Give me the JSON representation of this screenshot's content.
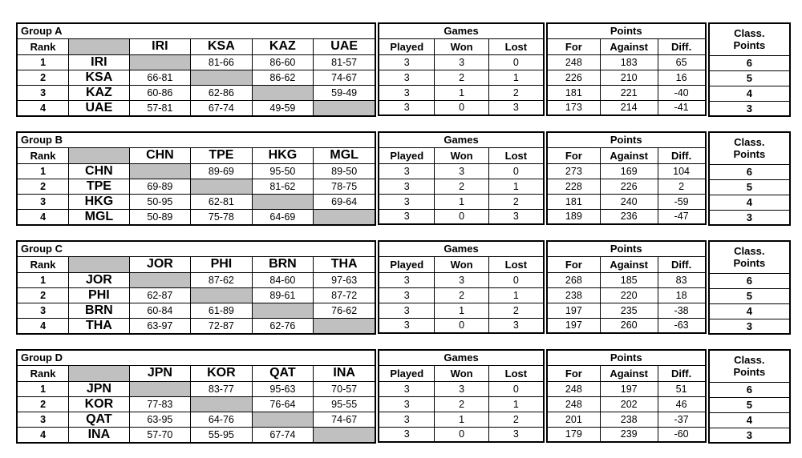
{
  "colors": {
    "cell_gray": "#c0c0c0",
    "border": "#000000",
    "text": "#000000",
    "background": "#ffffff"
  },
  "labels": {
    "rank": "Rank",
    "games": "Games",
    "played": "Played",
    "won": "Won",
    "lost": "Lost",
    "points": "Points",
    "for": "For",
    "against": "Against",
    "diff": "Diff.",
    "class_line1": "Class.",
    "class_line2": "Points"
  },
  "groups": [
    {
      "title": "Group A",
      "teams": [
        "IRI",
        "KSA",
        "KAZ",
        "UAE"
      ],
      "rows": [
        {
          "rank": "1",
          "team": "IRI",
          "results": [
            null,
            "81-66",
            "86-60",
            "81-57"
          ],
          "played": "3",
          "won": "3",
          "lost": "0",
          "pts_for": "248",
          "pts_against": "183",
          "diff": "65",
          "class_points": "6"
        },
        {
          "rank": "2",
          "team": "KSA",
          "results": [
            "66-81",
            null,
            "86-62",
            "74-67"
          ],
          "played": "3",
          "won": "2",
          "lost": "1",
          "pts_for": "226",
          "pts_against": "210",
          "diff": "16",
          "class_points": "5"
        },
        {
          "rank": "3",
          "team": "KAZ",
          "results": [
            "60-86",
            "62-86",
            null,
            "59-49"
          ],
          "played": "3",
          "won": "1",
          "lost": "2",
          "pts_for": "181",
          "pts_against": "221",
          "diff": "-40",
          "class_points": "4"
        },
        {
          "rank": "4",
          "team": "UAE",
          "results": [
            "57-81",
            "67-74",
            "49-59",
            null
          ],
          "played": "3",
          "won": "0",
          "lost": "3",
          "pts_for": "173",
          "pts_against": "214",
          "diff": "-41",
          "class_points": "3"
        }
      ]
    },
    {
      "title": "Group B",
      "teams": [
        "CHN",
        "TPE",
        "HKG",
        "MGL"
      ],
      "rows": [
        {
          "rank": "1",
          "team": "CHN",
          "results": [
            null,
            "89-69",
            "95-50",
            "89-50"
          ],
          "played": "3",
          "won": "3",
          "lost": "0",
          "pts_for": "273",
          "pts_against": "169",
          "diff": "104",
          "class_points": "6"
        },
        {
          "rank": "2",
          "team": "TPE",
          "results": [
            "69-89",
            null,
            "81-62",
            "78-75"
          ],
          "played": "3",
          "won": "2",
          "lost": "1",
          "pts_for": "228",
          "pts_against": "226",
          "diff": "2",
          "class_points": "5"
        },
        {
          "rank": "3",
          "team": "HKG",
          "results": [
            "50-95",
            "62-81",
            null,
            "69-64"
          ],
          "played": "3",
          "won": "1",
          "lost": "2",
          "pts_for": "181",
          "pts_against": "240",
          "diff": "-59",
          "class_points": "4"
        },
        {
          "rank": "4",
          "team": "MGL",
          "results": [
            "50-89",
            "75-78",
            "64-69",
            null
          ],
          "played": "3",
          "won": "0",
          "lost": "3",
          "pts_for": "189",
          "pts_against": "236",
          "diff": "-47",
          "class_points": "3"
        }
      ]
    },
    {
      "title": "Group C",
      "teams": [
        "JOR",
        "PHI",
        "BRN",
        "THA"
      ],
      "rows": [
        {
          "rank": "1",
          "team": "JOR",
          "results": [
            null,
            "87-62",
            "84-60",
            "97-63"
          ],
          "played": "3",
          "won": "3",
          "lost": "0",
          "pts_for": "268",
          "pts_against": "185",
          "diff": "83",
          "class_points": "6"
        },
        {
          "rank": "2",
          "team": "PHI",
          "results": [
            "62-87",
            null,
            "89-61",
            "87-72"
          ],
          "played": "3",
          "won": "2",
          "lost": "1",
          "pts_for": "238",
          "pts_against": "220",
          "diff": "18",
          "class_points": "5"
        },
        {
          "rank": "3",
          "team": "BRN",
          "results": [
            "60-84",
            "61-89",
            null,
            "76-62"
          ],
          "played": "3",
          "won": "1",
          "lost": "2",
          "pts_for": "197",
          "pts_against": "235",
          "diff": "-38",
          "class_points": "4"
        },
        {
          "rank": "4",
          "team": "THA",
          "results": [
            "63-97",
            "72-87",
            "62-76",
            null
          ],
          "played": "3",
          "won": "0",
          "lost": "3",
          "pts_for": "197",
          "pts_against": "260",
          "diff": "-63",
          "class_points": "3"
        }
      ]
    },
    {
      "title": "Group D",
      "teams": [
        "JPN",
        "KOR",
        "QAT",
        "INA"
      ],
      "rows": [
        {
          "rank": "1",
          "team": "JPN",
          "results": [
            null,
            "83-77",
            "95-63",
            "70-57"
          ],
          "played": "3",
          "won": "3",
          "lost": "0",
          "pts_for": "248",
          "pts_against": "197",
          "diff": "51",
          "class_points": "6"
        },
        {
          "rank": "2",
          "team": "KOR",
          "results": [
            "77-83",
            null,
            "76-64",
            "95-55"
          ],
          "played": "3",
          "won": "2",
          "lost": "1",
          "pts_for": "248",
          "pts_against": "202",
          "diff": "46",
          "class_points": "5"
        },
        {
          "rank": "3",
          "team": "QAT",
          "results": [
            "63-95",
            "64-76",
            null,
            "74-67"
          ],
          "played": "3",
          "won": "1",
          "lost": "2",
          "pts_for": "201",
          "pts_against": "238",
          "diff": "-37",
          "class_points": "4"
        },
        {
          "rank": "4",
          "team": "INA",
          "results": [
            "57-70",
            "55-95",
            "67-74",
            null
          ],
          "played": "3",
          "won": "0",
          "lost": "3",
          "pts_for": "179",
          "pts_against": "239",
          "diff": "-60",
          "class_points": "3"
        }
      ]
    }
  ]
}
